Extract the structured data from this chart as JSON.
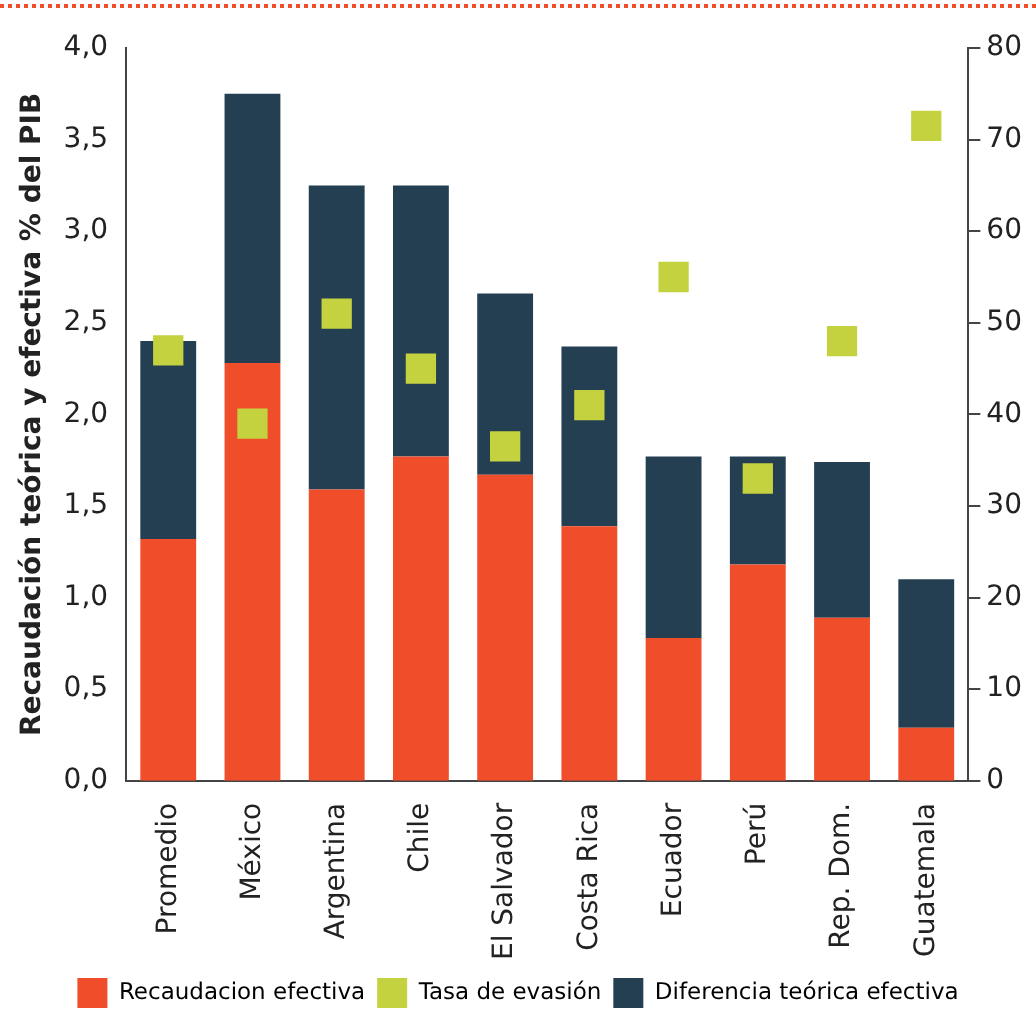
{
  "chart_data": {
    "type": "bar",
    "ylabel": "Recaudación teórica y efectiva % del PIB",
    "categories": [
      "Promedio",
      "México",
      "Argentina",
      "Chile",
      "El Salvador",
      "Costa Rica",
      "Ecuador",
      "Perú",
      "Rep. Dom.",
      "Guatemala"
    ],
    "stacked": true,
    "series": [
      {
        "name": "Recaudacion efectiva",
        "color": "#f04e2b",
        "values": [
          1.32,
          2.28,
          1.59,
          1.77,
          1.67,
          1.39,
          0.78,
          1.18,
          0.89,
          0.29
        ]
      },
      {
        "name": "Tasa de evasión",
        "type": "scatter",
        "axis": "y2",
        "color": "#c5d240",
        "values": [
          47,
          39,
          51,
          45,
          36.5,
          41,
          55,
          33,
          48,
          71.5
        ]
      },
      {
        "name": "Diferencia teórica efectiva",
        "color": "#243f52",
        "values": [
          1.08,
          1.47,
          1.66,
          1.48,
          0.99,
          0.98,
          0.99,
          0.59,
          0.85,
          0.81
        ]
      }
    ],
    "ylim": [
      0,
      4
    ],
    "yticks": [
      {
        "value": 0,
        "label": "0,0"
      },
      {
        "value": 0.5,
        "label": "0,5"
      },
      {
        "value": 1,
        "label": "1,0"
      },
      {
        "value": 1.5,
        "label": "1,5"
      },
      {
        "value": 2,
        "label": "2,0"
      },
      {
        "value": 2.5,
        "label": "2,5"
      },
      {
        "value": 3,
        "label": "3,0"
      },
      {
        "value": 3.5,
        "label": "3,5"
      },
      {
        "value": 4,
        "label": "4,0"
      }
    ],
    "y2lim": [
      0,
      80
    ],
    "y2ticks": [
      0,
      10,
      20,
      30,
      40,
      50,
      60,
      70,
      80
    ],
    "marker": "square",
    "legend": "bottom",
    "grid": false
  }
}
